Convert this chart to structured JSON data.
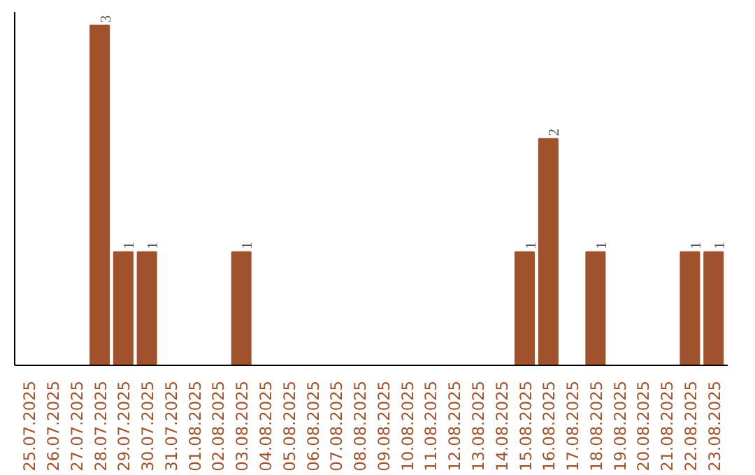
{
  "chart_data": {
    "type": "bar",
    "categories": [
      "25.07.2025",
      "26.07.2025",
      "27.07.2025",
      "28.07.2025",
      "29.07.2025",
      "30.07.2025",
      "31.07.2025",
      "01.08.2025",
      "02.08.2025",
      "03.08.2025",
      "04.08.2025",
      "05.08.2025",
      "06.08.2025",
      "07.08.2025",
      "08.08.2025",
      "09.08.2025",
      "10.08.2025",
      "11.08.2025",
      "12.08.2025",
      "13.08.2025",
      "14.08.2025",
      "15.08.2025",
      "16.08.2025",
      "17.08.2025",
      "18.08.2025",
      "19.08.2025",
      "20.08.2025",
      "21.08.2025",
      "22.08.2025",
      "23.08.2025"
    ],
    "values": [
      0,
      0,
      0,
      3,
      1,
      1,
      0,
      0,
      0,
      1,
      0,
      0,
      0,
      0,
      0,
      0,
      0,
      0,
      0,
      0,
      0,
      1,
      2,
      0,
      1,
      0,
      0,
      0,
      1,
      1
    ],
    "value_labels": [
      null,
      null,
      null,
      "3",
      "1",
      "1",
      null,
      null,
      null,
      "1",
      null,
      null,
      null,
      null,
      null,
      null,
      null,
      null,
      null,
      null,
      null,
      "1",
      "2",
      null,
      "1",
      null,
      null,
      null,
      "1",
      "1"
    ],
    "color": "#a0522d",
    "grid": false,
    "tick_labels": "x"
  }
}
